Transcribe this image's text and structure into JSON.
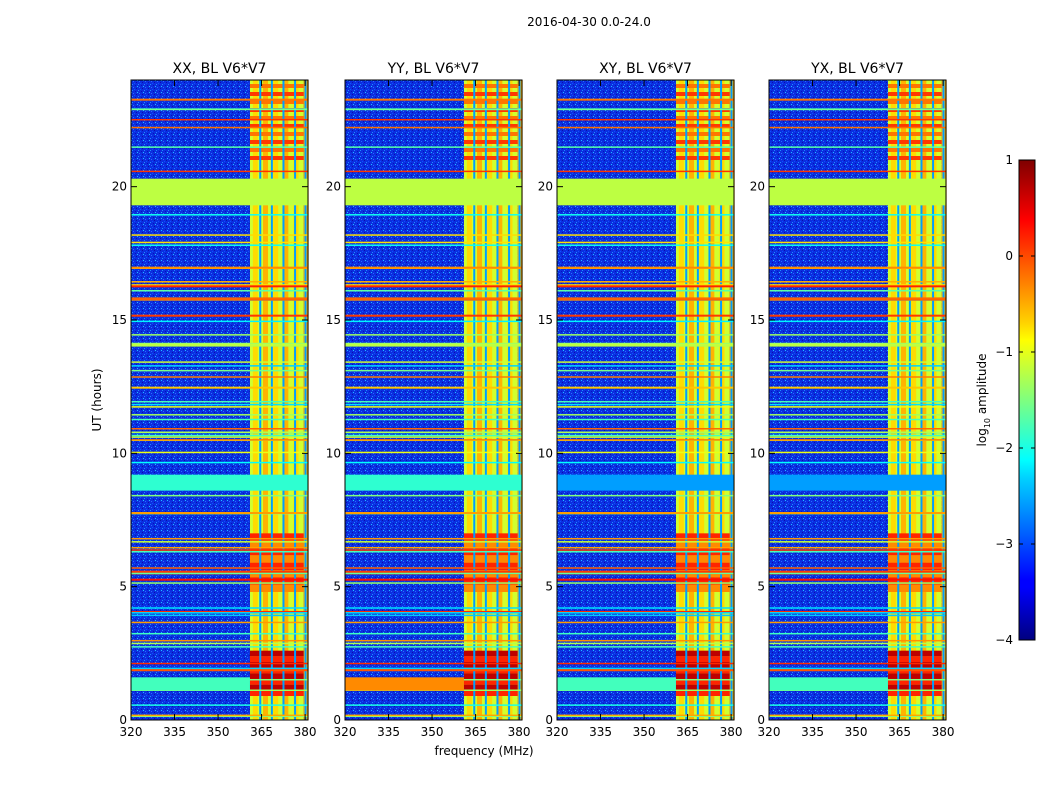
{
  "chart_data": {
    "type": "heatmap",
    "suptitle": "2016-04-30 0.0-24.0",
    "xlabel": "frequency (MHz)",
    "ylabel": "UT (hours)",
    "xlim": [
      320,
      381
    ],
    "ylim": [
      0,
      24
    ],
    "xticks": [
      320,
      335,
      350,
      365,
      380
    ],
    "yticks": [
      0,
      5,
      10,
      15,
      20
    ],
    "panels": [
      {
        "title": "XX, BL V6*V7"
      },
      {
        "title": "YY, BL V6*V7"
      },
      {
        "title": "XY, BL V6*V7"
      },
      {
        "title": "YX, BL V6*V7"
      }
    ],
    "colorbar": {
      "label_main": "log",
      "label_sub": "10",
      "label_rest": " amplitude",
      "range": [
        -4,
        1
      ],
      "ticks": [
        1,
        0,
        -1,
        -2,
        -3,
        -4
      ],
      "ticklabels": [
        "1",
        "0",
        "−1",
        "−2",
        "−3",
        "−4"
      ],
      "colormap": "jet"
    },
    "features": {
      "background_log_amplitude": -3,
      "flagged_band_hours": [
        19.3,
        20.3
      ],
      "flagged_band_log_amplitude": -1.2,
      "rfi_band_mhz": [
        361,
        381
      ],
      "bright_hours": [
        [
          0.9,
          2.6
        ],
        [
          4.8,
          7.0
        ]
      ]
    }
  }
}
